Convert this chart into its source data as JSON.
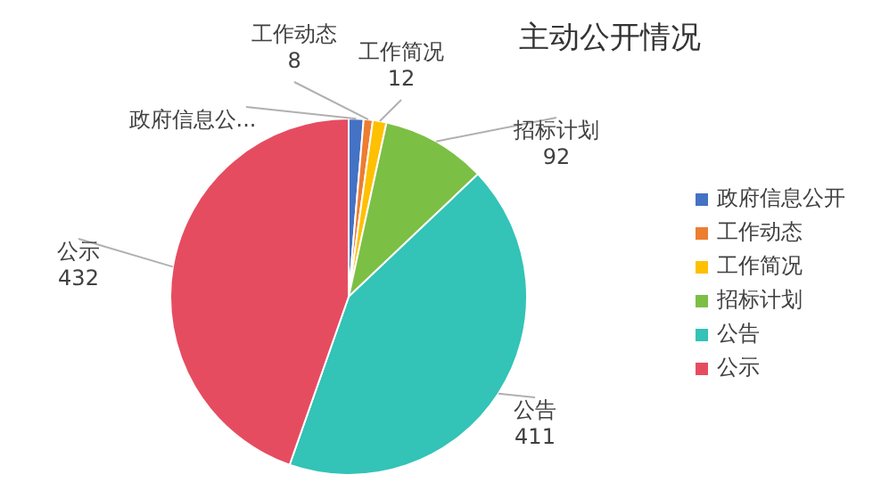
{
  "chart_data": {
    "type": "pie",
    "title": "主动公开情况",
    "categories": [
      "政府信息公开",
      "工作动态",
      "工作简况",
      "招标计划",
      "公告",
      "公示"
    ],
    "values": [
      13,
      8,
      12,
      92,
      411,
      432
    ],
    "colors": [
      "#4472c4",
      "#ed7d31",
      "#ffc000",
      "#7cbf45",
      "#33c3b7",
      "#e64c60"
    ],
    "value_labels": [
      null,
      "8",
      "12",
      "92",
      "411",
      "432"
    ],
    "annotations": [
      "政府信息公..."
    ],
    "legend": "right"
  }
}
